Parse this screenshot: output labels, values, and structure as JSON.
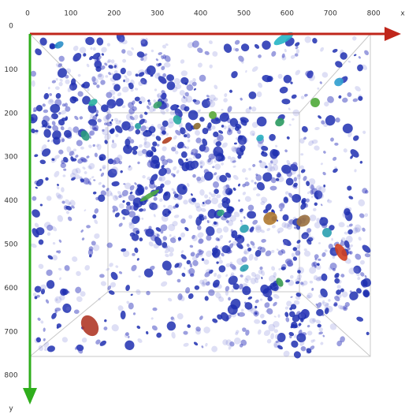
{
  "x_axis": {
    "ticks": [
      "0",
      "100",
      "200",
      "300",
      "400",
      "500",
      "600",
      "700",
      "800"
    ],
    "label": "x"
  },
  "y_axis": {
    "ticks": [
      "0",
      "100",
      "200",
      "300",
      "400",
      "500",
      "600",
      "700",
      "800"
    ],
    "label": "y"
  }
}
